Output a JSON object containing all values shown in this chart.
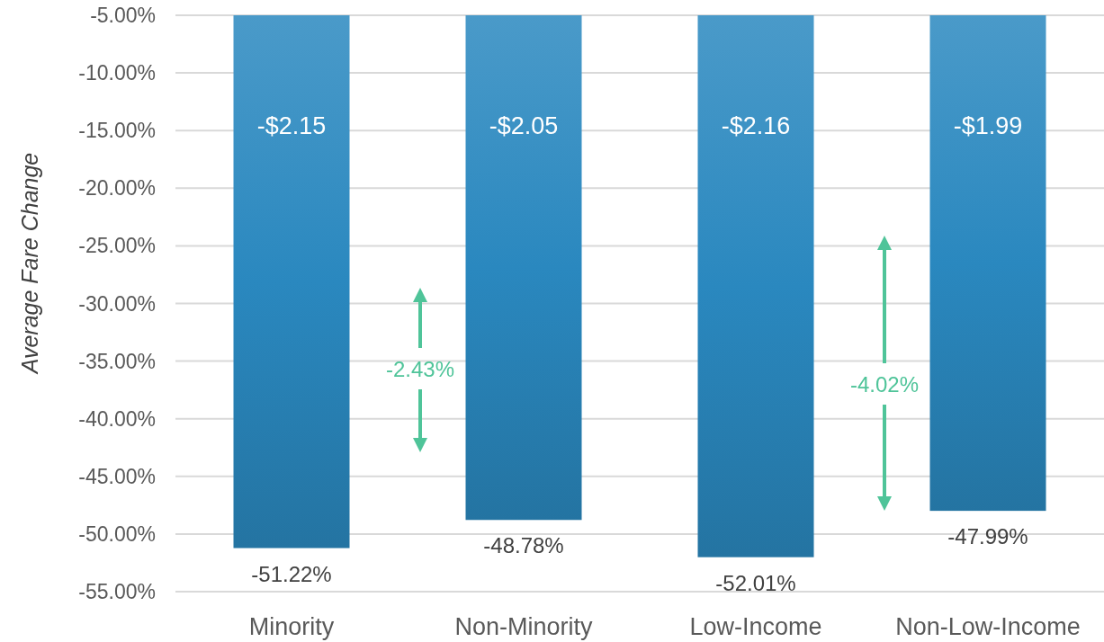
{
  "chart_data": {
    "type": "bar",
    "ylabel": "Average Fare Change",
    "categories": [
      "Minority",
      "Non-Minority",
      "Low-Income",
      "Non-Low-Income"
    ],
    "values": [
      -51.22,
      -48.78,
      -52.01,
      -47.99
    ],
    "value_labels": [
      "-51.22%",
      "-48.78%",
      "-52.01%",
      "-47.99%"
    ],
    "color": "#2a88bf",
    "ylim": [
      -55,
      -5
    ],
    "yticks": [
      {
        "value": -55,
        "label": "-55.00%"
      },
      {
        "value": -50,
        "label": "-50.00%"
      },
      {
        "value": -45,
        "label": "-45.00%"
      },
      {
        "value": -40,
        "label": "-40.00%"
      },
      {
        "value": -35,
        "label": "-35.00%"
      },
      {
        "value": -30,
        "label": "-30.00%"
      },
      {
        "value": -25,
        "label": "-25.00%"
      },
      {
        "value": -20,
        "label": "-20.00%"
      },
      {
        "value": -15,
        "label": "-15.00%"
      },
      {
        "value": -10,
        "label": "-10.00%"
      },
      {
        "value": -5,
        "label": "-5.00%"
      }
    ],
    "grid": "y",
    "annotations": [
      "-$2.15",
      "-$2.05",
      "-$2.16",
      "-$1.99",
      "-2.43%",
      "-4.02%"
    ]
  }
}
